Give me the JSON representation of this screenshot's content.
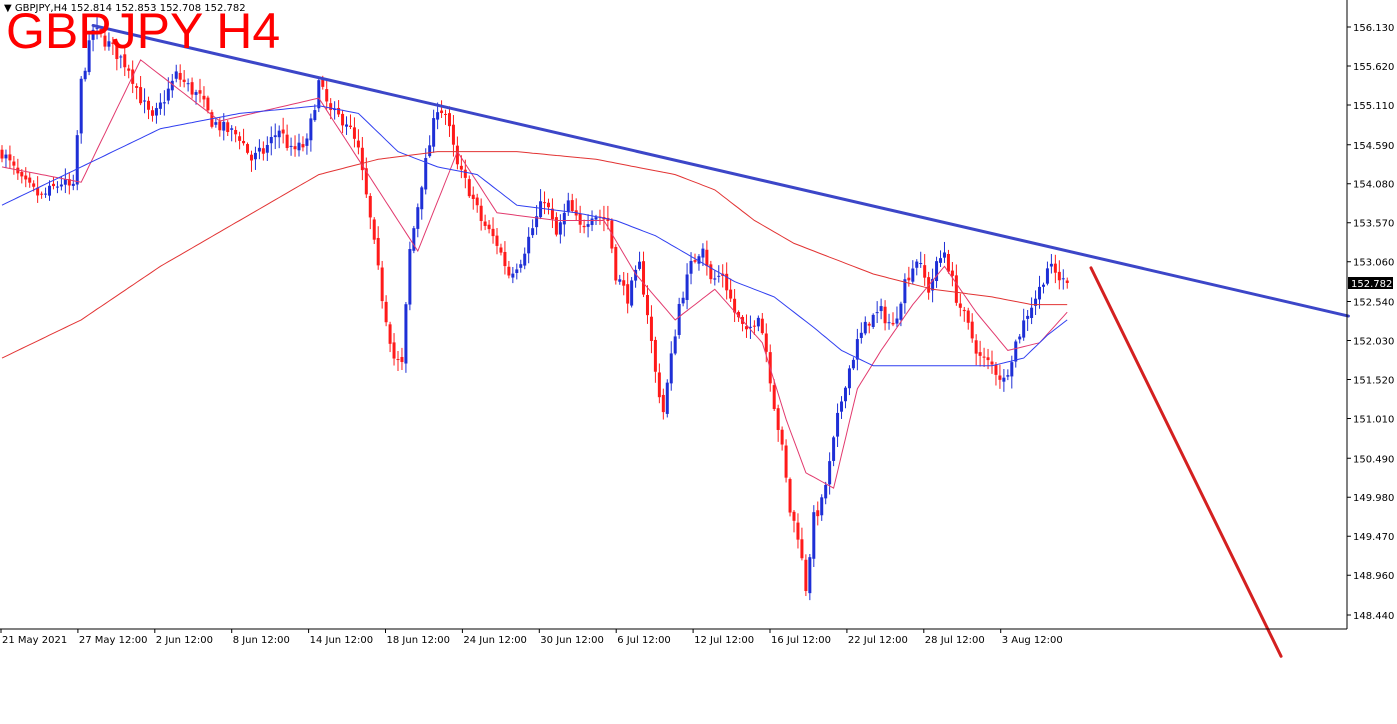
{
  "header": {
    "info": "GBPJPY,H4  152.814 152.853 152.708 152.782",
    "big_title": "GBPJPY H4"
  },
  "chart_data": {
    "type": "candlestick",
    "symbol": "GBPJPY",
    "timeframe": "H4",
    "ohlc_current": {
      "open": 152.814,
      "high": 152.853,
      "low": 152.708,
      "close": 152.782
    },
    "current_price_label": "152.782",
    "y_ticks": [
      "156.130",
      "155.620",
      "155.110",
      "154.590",
      "154.080",
      "153.570",
      "153.060",
      "152.540",
      "152.030",
      "151.520",
      "151.010",
      "150.490",
      "149.980",
      "149.470",
      "148.960",
      "148.440"
    ],
    "x_ticks": [
      "21 May 2021",
      "27 May 12:00",
      "2 Jun 12:00",
      "8 Jun 12:00",
      "14 Jun 12:00",
      "18 Jun 12:00",
      "24 Jun 12:00",
      "30 Jun 12:00",
      "6 Jul 12:00",
      "12 Jul 12:00",
      "16 Jul 12:00",
      "22 Jul 12:00",
      "28 Jul 12:00",
      "3 Aug 12:00"
    ],
    "ylim": [
      148.2,
      156.35
    ],
    "n_bars": 270,
    "close_path": [
      [
        0,
        154.5
      ],
      [
        5,
        154.1
      ],
      [
        10,
        153.9
      ],
      [
        15,
        154.1
      ],
      [
        18,
        154.0
      ],
      [
        20,
        155.4
      ],
      [
        23,
        156.1
      ],
      [
        27,
        155.9
      ],
      [
        32,
        155.6
      ],
      [
        35,
        155.2
      ],
      [
        38,
        154.9
      ],
      [
        41,
        155.2
      ],
      [
        44,
        155.5
      ],
      [
        48,
        155.3
      ],
      [
        50,
        155.2
      ],
      [
        53,
        154.9
      ],
      [
        56,
        154.8
      ],
      [
        60,
        154.7
      ],
      [
        63,
        154.4
      ],
      [
        66,
        154.5
      ],
      [
        70,
        154.8
      ],
      [
        73,
        154.5
      ],
      [
        77,
        154.6
      ],
      [
        80,
        155.4
      ],
      [
        83,
        155.0
      ],
      [
        87,
        154.9
      ],
      [
        90,
        154.5
      ],
      [
        93,
        153.6
      ],
      [
        96,
        152.6
      ],
      [
        99,
        151.8
      ],
      [
        101,
        151.7
      ],
      [
        103,
        153.2
      ],
      [
        106,
        154.1
      ],
      [
        108,
        154.6
      ],
      [
        110,
        155.1
      ],
      [
        112,
        155.0
      ],
      [
        115,
        154.3
      ],
      [
        118,
        154.0
      ],
      [
        121,
        153.6
      ],
      [
        125,
        153.3
      ],
      [
        128,
        152.9
      ],
      [
        131,
        153.1
      ],
      [
        134,
        153.5
      ],
      [
        137,
        153.9
      ],
      [
        140,
        153.4
      ],
      [
        143,
        153.8
      ],
      [
        146,
        153.5
      ],
      [
        149,
        153.7
      ],
      [
        153,
        153.6
      ],
      [
        155,
        152.9
      ],
      [
        158,
        152.6
      ],
      [
        161,
        153.0
      ],
      [
        163,
        152.4
      ],
      [
        165,
        151.6
      ],
      [
        167,
        151.1
      ],
      [
        169,
        151.8
      ],
      [
        171,
        152.5
      ],
      [
        174,
        153.0
      ],
      [
        177,
        153.3
      ],
      [
        179,
        152.8
      ],
      [
        182,
        152.9
      ],
      [
        185,
        152.4
      ],
      [
        188,
        152.1
      ],
      [
        191,
        152.4
      ],
      [
        193,
        151.9
      ],
      [
        195,
        151.2
      ],
      [
        197,
        150.6
      ],
      [
        199,
        149.8
      ],
      [
        201,
        149.5
      ],
      [
        203,
        148.8
      ],
      [
        205,
        149.7
      ],
      [
        207,
        149.9
      ],
      [
        209,
        150.4
      ],
      [
        211,
        151.0
      ],
      [
        213,
        151.5
      ],
      [
        216,
        152.0
      ],
      [
        219,
        152.3
      ],
      [
        222,
        152.4
      ],
      [
        225,
        152.2
      ],
      [
        228,
        152.8
      ],
      [
        231,
        153.1
      ],
      [
        234,
        152.7
      ],
      [
        236,
        153.0
      ],
      [
        238,
        153.2
      ],
      [
        241,
        152.6
      ],
      [
        244,
        152.2
      ],
      [
        247,
        151.8
      ],
      [
        250,
        151.7
      ],
      [
        253,
        151.5
      ],
      [
        256,
        152.0
      ],
      [
        259,
        152.4
      ],
      [
        262,
        152.7
      ],
      [
        264,
        153.0
      ],
      [
        266,
        152.9
      ],
      [
        268,
        152.8
      ],
      [
        269,
        152.782
      ]
    ],
    "ma_fast_path": [
      [
        0,
        154.3
      ],
      [
        20,
        154.1
      ],
      [
        35,
        155.7
      ],
      [
        55,
        154.9
      ],
      [
        80,
        155.2
      ],
      [
        95,
        154.0
      ],
      [
        105,
        153.2
      ],
      [
        115,
        154.5
      ],
      [
        125,
        153.7
      ],
      [
        140,
        153.6
      ],
      [
        152,
        153.6
      ],
      [
        160,
        152.9
      ],
      [
        170,
        152.3
      ],
      [
        180,
        152.7
      ],
      [
        192,
        152.0
      ],
      [
        198,
        151.0
      ],
      [
        203,
        150.3
      ],
      [
        210,
        150.1
      ],
      [
        216,
        151.4
      ],
      [
        222,
        151.9
      ],
      [
        230,
        152.5
      ],
      [
        238,
        153.0
      ],
      [
        246,
        152.4
      ],
      [
        254,
        151.9
      ],
      [
        262,
        152.0
      ],
      [
        269,
        152.4
      ]
    ],
    "ma_mid_path": [
      [
        0,
        153.8
      ],
      [
        20,
        154.3
      ],
      [
        40,
        154.8
      ],
      [
        60,
        155.0
      ],
      [
        80,
        155.1
      ],
      [
        90,
        155.0
      ],
      [
        100,
        154.5
      ],
      [
        110,
        154.3
      ],
      [
        120,
        154.2
      ],
      [
        130,
        153.8
      ],
      [
        145,
        153.7
      ],
      [
        155,
        153.6
      ],
      [
        165,
        153.4
      ],
      [
        175,
        153.1
      ],
      [
        185,
        152.8
      ],
      [
        195,
        152.6
      ],
      [
        205,
        152.2
      ],
      [
        212,
        151.9
      ],
      [
        220,
        151.7
      ],
      [
        235,
        151.7
      ],
      [
        250,
        151.7
      ],
      [
        258,
        151.8
      ],
      [
        264,
        152.1
      ],
      [
        269,
        152.3
      ]
    ],
    "ma_slow_path": [
      [
        0,
        151.8
      ],
      [
        20,
        152.3
      ],
      [
        40,
        153.0
      ],
      [
        60,
        153.6
      ],
      [
        80,
        154.2
      ],
      [
        95,
        154.4
      ],
      [
        110,
        154.5
      ],
      [
        130,
        154.5
      ],
      [
        150,
        154.4
      ],
      [
        170,
        154.2
      ],
      [
        180,
        154.0
      ],
      [
        190,
        153.6
      ],
      [
        200,
        153.3
      ],
      [
        210,
        153.1
      ],
      [
        220,
        152.9
      ],
      [
        235,
        152.7
      ],
      [
        250,
        152.6
      ],
      [
        260,
        152.5
      ],
      [
        269,
        152.5
      ]
    ],
    "lines": [
      {
        "name": "descending-trendline",
        "color": "#3c46c8",
        "from": {
          "bar": 23,
          "price": 156.15
        },
        "to": {
          "bar": 340,
          "price": 152.35
        }
      },
      {
        "name": "projected-drop",
        "color": "#d42020",
        "from": {
          "bar": 275,
          "price": 152.98
        },
        "to": {
          "bar": 323,
          "price": 147.9
        }
      }
    ],
    "colors": {
      "bull": "#1e2fd6",
      "bear": "#ff1a1a",
      "ma_fast": "#e23a6e",
      "ma_mid": "#2f3ef0",
      "ma_slow": "#e23333",
      "price_tag_bg": "#000000"
    }
  }
}
